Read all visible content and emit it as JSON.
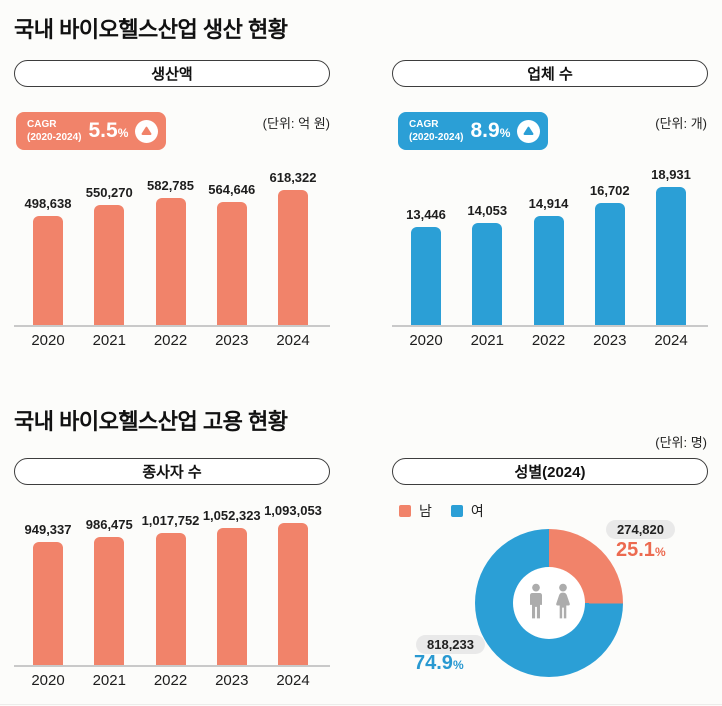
{
  "strings": {
    "percent_sign": "%"
  },
  "colors": {
    "background": "#FCFCFA",
    "orange": "#F1836A",
    "blue": "#2B9FD6",
    "orange_accent": "#EC6A50",
    "blue_accent": "#2999D1",
    "label_pill_bg": "#E9E9E9",
    "axis_line": "#C9C9C9",
    "icon_gray": "#ACACAC",
    "text": "#1D1D1D"
  },
  "sections": [
    {
      "title": "국내 바이오헬스산업 생산 현황"
    },
    {
      "title": "국내 바이오헬스산업 고용 현황"
    }
  ],
  "chart_data": [
    {
      "type": "bar",
      "title": "생산액",
      "unit": "(단위: 억 원)",
      "cagr": {
        "label": "CAGR",
        "period": "(2020-2024)",
        "value": "5.5",
        "direction": "up"
      },
      "categories": [
        "2020",
        "2021",
        "2022",
        "2023",
        "2024"
      ],
      "values": [
        498638,
        550270,
        582785,
        564646,
        618322
      ],
      "value_labels": [
        "498,638",
        "550,270",
        "582,785",
        "564,646",
        "618,322"
      ],
      "color_key": "orange",
      "ylim": [
        0,
        650000
      ],
      "grid": false,
      "legend_position": "none"
    },
    {
      "type": "bar",
      "title": "업체 수",
      "unit": "(단위: 개)",
      "cagr": {
        "label": "CAGR",
        "period": "(2020-2024)",
        "value": "8.9",
        "direction": "up"
      },
      "categories": [
        "2020",
        "2021",
        "2022",
        "2023",
        "2024"
      ],
      "values": [
        13446,
        14053,
        14914,
        16702,
        18931
      ],
      "value_labels": [
        "13,446",
        "14,053",
        "14,914",
        "16,702",
        "18,931"
      ],
      "color_key": "blue",
      "ylim": [
        0,
        20000
      ],
      "grid": false,
      "legend_position": "none"
    },
    {
      "type": "bar",
      "title": "종사자 수",
      "categories": [
        "2020",
        "2021",
        "2022",
        "2023",
        "2024"
      ],
      "values": [
        949337,
        986475,
        1017752,
        1052323,
        1093053
      ],
      "value_labels": [
        "949,337",
        "986,475",
        "1,017,752",
        "1,052,323",
        "1,093,053"
      ],
      "color_key": "orange",
      "ylim": [
        0,
        1150000
      ],
      "grid": false,
      "legend_position": "none"
    },
    {
      "type": "donut",
      "title": "성별(2024)",
      "unit": "(단위: 명)",
      "legend_position": "top-left",
      "legend": [
        {
          "label": "남",
          "color_key": "orange"
        },
        {
          "label": "여",
          "color_key": "blue"
        }
      ],
      "slices": [
        {
          "label": "남",
          "value": 274820,
          "value_label": "274,820",
          "percent": "25.1",
          "color_key": "orange"
        },
        {
          "label": "여",
          "value": 818233,
          "value_label": "818,233",
          "percent": "74.9",
          "color_key": "blue"
        }
      ]
    }
  ]
}
